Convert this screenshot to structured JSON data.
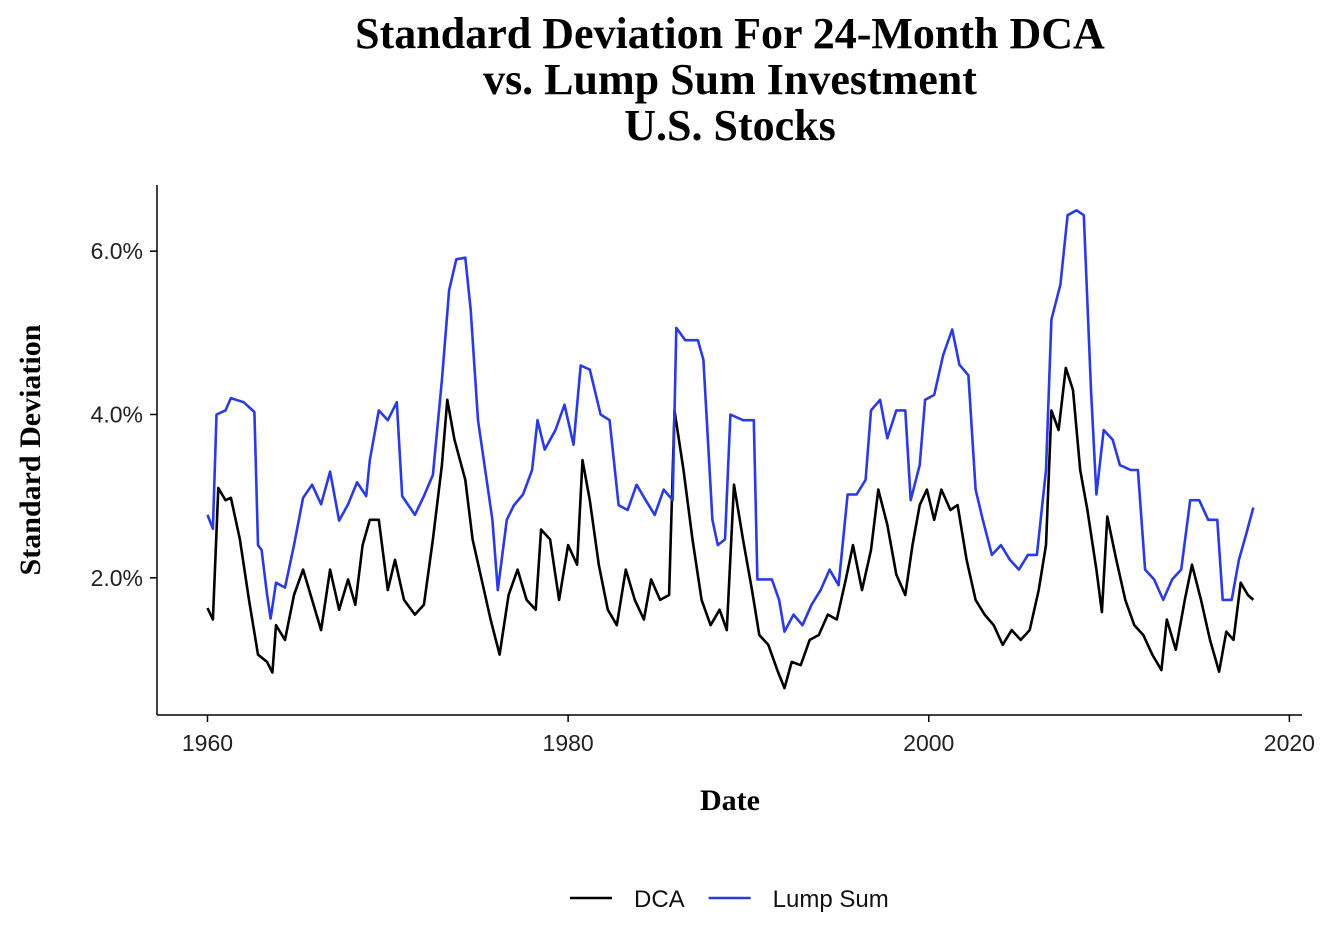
{
  "chart_data": {
    "type": "line",
    "title": [
      "Standard Deviation For 24-Month DCA",
      "vs. Lump Sum Investment",
      "U.S. Stocks"
    ],
    "x_label": "Date",
    "y_label": "Standard Deviation",
    "xlim": [
      1957.2,
      2020.7
    ],
    "xticks": [
      1960,
      1980,
      2000,
      2020
    ],
    "ylim": [
      0.32,
      6.81
    ],
    "yticks": [
      {
        "value": 2,
        "label": "2.0%"
      },
      {
        "value": 4,
        "label": "4.0%"
      },
      {
        "value": 6,
        "label": "6.0%"
      }
    ],
    "legend": "bottom",
    "series": [
      {
        "name": "DCA",
        "color": "#000000",
        "x": [
          1960,
          1960.3,
          1960.6,
          1961,
          1961.3,
          1961.8,
          1962.3,
          1962.8,
          1963.3,
          1963.6,
          1963.8,
          1964.3,
          1964.8,
          1965.3,
          1965.8,
          1966.3,
          1966.8,
          1967.3,
          1967.8,
          1968.2,
          1968.6,
          1969,
          1969.5,
          1970,
          1970.4,
          1970.9,
          1971.5,
          1972,
          1972.5,
          1973,
          1973.3,
          1973.7,
          1974.3,
          1974.7,
          1975.2,
          1975.7,
          1976.2,
          1976.7,
          1977.2,
          1977.7,
          1978.2,
          1978.5,
          1979,
          1979.5,
          1980,
          1980.5,
          1980.8,
          1981.2,
          1981.7,
          1982.2,
          1982.7,
          1983.2,
          1983.7,
          1984.2,
          1984.6,
          1985.1,
          1985.6,
          1985.9,
          1986.4,
          1986.9,
          1987.4,
          1987.9,
          1988.4,
          1988.8,
          1989.2,
          1989.7,
          1990.2,
          1990.6,
          1991.1,
          1991.6,
          1992,
          1992.4,
          1992.9,
          1993.4,
          1993.9,
          1994.4,
          1994.9,
          1995.4,
          1995.8,
          1996.3,
          1996.8,
          1997.2,
          1997.7,
          1998.2,
          1998.7,
          1999.1,
          1999.5,
          1999.9,
          2000.3,
          2000.7,
          2001.2,
          2001.6,
          2002.1,
          2002.6,
          2003.1,
          2003.6,
          2004.1,
          2004.6,
          2005.1,
          2005.6,
          2006.1,
          2006.5,
          2006.8,
          2007.2,
          2007.6,
          2008,
          2008.4,
          2008.8,
          2009.3,
          2009.6,
          2009.9,
          2010.4,
          2010.9,
          2011.4,
          2011.9,
          2012.4,
          2012.9,
          2013.2,
          2013.7,
          2014.2,
          2014.6,
          2015.1,
          2015.6,
          2016.1,
          2016.5,
          2016.9,
          2017.3,
          2017.7,
          2018
        ],
        "values": [
          1.63,
          1.49,
          3.1,
          2.95,
          2.98,
          2.47,
          1.73,
          1.06,
          0.97,
          0.84,
          1.42,
          1.24,
          1.79,
          2.1,
          1.73,
          1.36,
          2.1,
          1.61,
          1.98,
          1.67,
          2.4,
          2.71,
          2.71,
          1.85,
          2.22,
          1.73,
          1.55,
          1.67,
          2.47,
          3.38,
          4.18,
          3.69,
          3.2,
          2.47,
          1.98,
          1.49,
          1.06,
          1.79,
          2.1,
          1.73,
          1.61,
          2.59,
          2.47,
          1.73,
          2.4,
          2.16,
          3.44,
          2.95,
          2.16,
          1.61,
          1.42,
          2.1,
          1.73,
          1.49,
          1.98,
          1.73,
          1.79,
          4.05,
          3.32,
          2.47,
          1.73,
          1.42,
          1.61,
          1.36,
          3.14,
          2.47,
          1.85,
          1.3,
          1.18,
          0.87,
          0.65,
          0.97,
          0.93,
          1.24,
          1.3,
          1.55,
          1.49,
          1.98,
          2.4,
          1.85,
          2.34,
          3.08,
          2.65,
          2.04,
          1.79,
          2.4,
          2.89,
          3.08,
          2.71,
          3.08,
          2.83,
          2.89,
          2.22,
          1.73,
          1.55,
          1.42,
          1.18,
          1.36,
          1.24,
          1.36,
          1.85,
          2.4,
          4.05,
          3.81,
          4.57,
          4.3,
          3.32,
          2.83,
          2.1,
          1.58,
          2.75,
          2.22,
          1.73,
          1.42,
          1.3,
          1.06,
          0.87,
          1.49,
          1.12,
          1.73,
          2.16,
          1.73,
          1.24,
          0.85,
          1.34,
          1.24,
          1.94,
          1.79,
          1.73
        ]
      },
      {
        "name": "Lump Sum",
        "color": "#2a3be0",
        "x": [
          1960,
          1960.3,
          1960.5,
          1961,
          1961.3,
          1962,
          1962.6,
          1962.8,
          1963,
          1963.3,
          1963.5,
          1963.8,
          1964.3,
          1964.8,
          1965.3,
          1965.8,
          1966.3,
          1966.8,
          1967.3,
          1967.8,
          1968.3,
          1968.8,
          1969,
          1969.5,
          1970,
          1970.5,
          1970.8,
          1971.5,
          1972,
          1972.5,
          1973,
          1973.4,
          1973.8,
          1974.3,
          1974.6,
          1975,
          1975.4,
          1975.8,
          1976.1,
          1976.6,
          1977,
          1977.5,
          1978,
          1978.3,
          1978.7,
          1979.3,
          1979.8,
          1980.3,
          1980.7,
          1981.2,
          1981.8,
          1982.3,
          1982.8,
          1983.3,
          1983.8,
          1984.3,
          1984.8,
          1985.3,
          1985.8,
          1986,
          1986.5,
          1987.2,
          1987.5,
          1988,
          1988.3,
          1988.7,
          1989,
          1989.7,
          1990.3,
          1990.5,
          1991.3,
          1991.7,
          1992,
          1992.5,
          1993,
          1993.5,
          1994,
          1994.5,
          1995,
          1995.5,
          1996,
          1996.5,
          1996.8,
          1997.3,
          1997.7,
          1998.2,
          1998.7,
          1999,
          1999.5,
          1999.8,
          2000.3,
          2000.8,
          2001.3,
          2001.7,
          2002.2,
          2002.6,
          2003,
          2003.5,
          2004,
          2004.5,
          2005,
          2005.5,
          2006,
          2006.5,
          2006.8,
          2007.3,
          2007.7,
          2008.2,
          2008.6,
          2009,
          2009.3,
          2009.7,
          2010.2,
          2010.6,
          2011.2,
          2011.6,
          2012,
          2012.5,
          2013,
          2013.5,
          2014,
          2014.5,
          2015,
          2015.5,
          2016,
          2016.3,
          2016.8,
          2017.2,
          2017.6,
          2018
        ],
        "values": [
          2.77,
          2.6,
          4.0,
          4.05,
          4.2,
          4.15,
          4.03,
          2.4,
          2.34,
          1.8,
          1.5,
          1.94,
          1.88,
          2.4,
          2.98,
          3.14,
          2.9,
          3.3,
          2.7,
          2.9,
          3.17,
          3.0,
          3.44,
          4.05,
          3.93,
          4.15,
          3.0,
          2.77,
          3.0,
          3.26,
          4.42,
          5.52,
          5.9,
          5.92,
          5.28,
          3.93,
          3.32,
          2.71,
          1.85,
          2.71,
          2.89,
          3.02,
          3.32,
          3.93,
          3.57,
          3.81,
          4.12,
          3.63,
          4.6,
          4.55,
          4.0,
          3.93,
          2.89,
          2.83,
          3.14,
          2.95,
          2.77,
          3.08,
          2.95,
          5.06,
          4.91,
          4.91,
          4.67,
          2.71,
          2.4,
          2.47,
          4.0,
          3.93,
          3.93,
          1.98,
          1.98,
          1.73,
          1.34,
          1.55,
          1.42,
          1.67,
          1.85,
          2.1,
          1.91,
          3.02,
          3.02,
          3.2,
          4.05,
          4.18,
          3.71,
          4.05,
          4.05,
          2.95,
          3.38,
          4.18,
          4.24,
          4.73,
          5.04,
          4.61,
          4.48,
          3.08,
          2.71,
          2.28,
          2.4,
          2.22,
          2.1,
          2.28,
          2.28,
          3.32,
          5.16,
          5.59,
          6.44,
          6.5,
          6.44,
          4.3,
          3.02,
          3.81,
          3.69,
          3.38,
          3.32,
          3.32,
          2.1,
          1.98,
          1.73,
          1.98,
          2.1,
          2.95,
          2.95,
          2.71,
          2.71,
          1.73,
          1.73,
          2.22,
          2.53,
          2.86
        ]
      }
    ]
  }
}
